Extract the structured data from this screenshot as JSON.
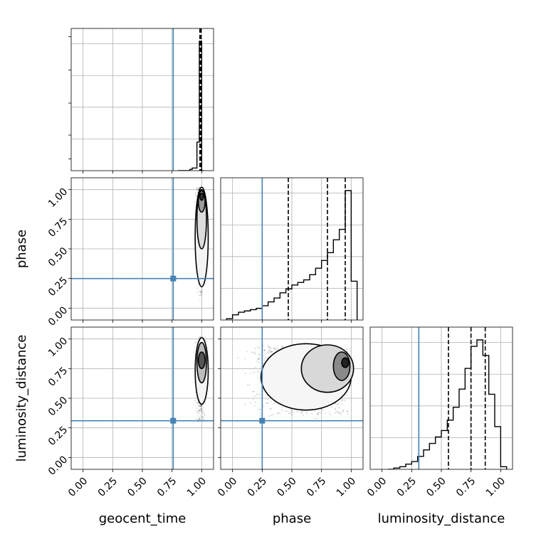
{
  "chart_data": {
    "type": "corner",
    "parameters": [
      "geocent_time",
      "phase",
      "luminosity_distance"
    ],
    "axis_labels": {
      "x": [
        "geocent_time",
        "phase",
        "luminosity_distance"
      ],
      "y": [
        "",
        "phase",
        "luminosity_distance"
      ]
    },
    "tick_values": [
      0.0,
      0.25,
      0.5,
      0.75,
      1.0
    ],
    "tick_labels": [
      "0.00",
      "0.25",
      "0.50",
      "0.75",
      "1.00"
    ],
    "range": [
      -0.1,
      1.1
    ],
    "grid": true,
    "truths": {
      "geocent_time": 0.76,
      "phase": 0.25,
      "luminosity_distance": 0.31
    },
    "truth_color": "#4682b4",
    "quantiles": {
      "geocent_time": [
        0.985,
        0.99,
        0.995
      ],
      "phase": [
        0.47,
        0.8,
        0.95
      ],
      "luminosity_distance": [
        0.56,
        0.75,
        0.87
      ]
    },
    "histograms": {
      "geocent_time": {
        "edges": [
          0.8,
          0.82,
          0.84,
          0.86,
          0.88,
          0.9,
          0.92,
          0.94,
          0.96,
          0.98,
          1.0,
          1.02
        ],
        "counts": [
          0,
          0,
          0,
          0,
          0,
          0.01,
          0.02,
          0.02,
          0.22,
          1.0,
          0
        ]
      },
      "phase": {
        "edges": [
          -0.05,
          0.0,
          0.05,
          0.1,
          0.15,
          0.2,
          0.25,
          0.3,
          0.35,
          0.4,
          0.45,
          0.5,
          0.55,
          0.6,
          0.65,
          0.7,
          0.75,
          0.8,
          0.85,
          0.9,
          0.95,
          1.0,
          1.05
        ],
        "counts": [
          0.01,
          0.04,
          0.06,
          0.07,
          0.08,
          0.09,
          0.11,
          0.14,
          0.17,
          0.21,
          0.24,
          0.27,
          0.29,
          0.31,
          0.35,
          0.4,
          0.46,
          0.52,
          0.62,
          0.7,
          1.0,
          0.3
        ]
      },
      "luminosity_distance": {
        "edges": [
          0.05,
          0.1,
          0.15,
          0.2,
          0.25,
          0.3,
          0.35,
          0.4,
          0.45,
          0.5,
          0.55,
          0.6,
          0.65,
          0.7,
          0.75,
          0.8,
          0.85,
          0.9,
          0.95,
          1.0,
          1.05
        ],
        "counts": [
          0.0,
          0.01,
          0.02,
          0.04,
          0.06,
          0.1,
          0.15,
          0.2,
          0.25,
          0.3,
          0.38,
          0.48,
          0.62,
          0.78,
          0.95,
          1.0,
          0.88,
          0.58,
          0.33,
          0.02
        ]
      }
    },
    "joint_2d": {
      "phase_vs_geocent_time": {
        "x_center": 0.99,
        "x_spread": 0.02,
        "y_peak": 0.92,
        "y_low": 0.05,
        "y_high": 1.02
      },
      "luminosity_distance_vs_geocent_time": {
        "x_center": 0.99,
        "x_spread": 0.02,
        "y_peak": 0.82,
        "y_low": 0.3,
        "y_high": 1.02
      },
      "luminosity_distance_vs_phase": {
        "x_peak": 0.95,
        "y_peak": 0.8,
        "x_low": 0.2,
        "x_high": 1.0,
        "y_low": 0.35,
        "y_high": 0.95
      }
    }
  }
}
